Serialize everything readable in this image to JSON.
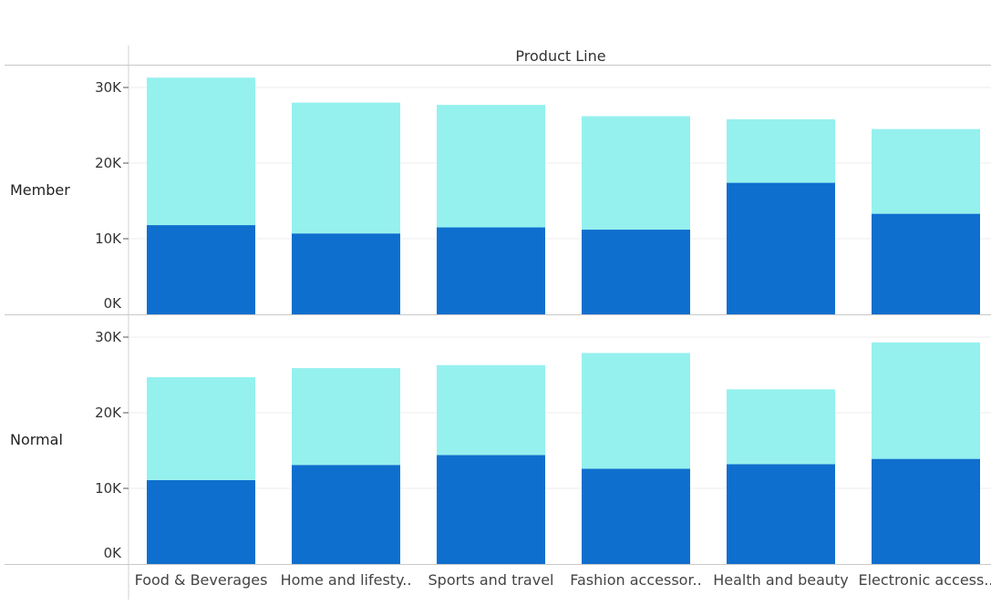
{
  "chart_data": {
    "type": "bar",
    "stacked": true,
    "column_header": "Product Line",
    "categories": [
      "Food & Beverages",
      "Home and lifesty..",
      "Sports and travel",
      "Fashion accessor..",
      "Health and beauty",
      "Electronic access.."
    ],
    "y_ticks": [
      "0K",
      "10K",
      "20K",
      "30K"
    ],
    "ylim": [
      0,
      33000
    ],
    "grid": true,
    "colors": {
      "dark": "#0f6fce",
      "light": "#95f1ee"
    },
    "panels": [
      {
        "row_label": "Member",
        "series": [
          {
            "values": [
              11800,
              10700,
              11500,
              11200,
              17400,
              13300
            ]
          },
          {
            "values": [
              19500,
              17300,
              16200,
              15000,
              8400,
              11200
            ]
          }
        ]
      },
      {
        "row_label": "Normal",
        "series": [
          {
            "values": [
              11100,
              13100,
              14400,
              12600,
              13200,
              13900
            ]
          },
          {
            "values": [
              13600,
              12800,
              11900,
              15300,
              9900,
              15400
            ]
          }
        ]
      }
    ]
  }
}
